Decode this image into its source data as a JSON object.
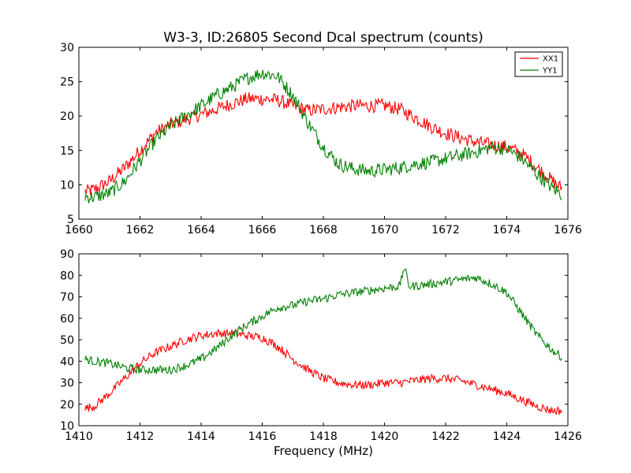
{
  "figure": {
    "title": "W3-3, ID:26805 Second Dcal spectrum (counts)",
    "background": "#ffffff"
  },
  "chart_data": [
    {
      "type": "line",
      "title": "W3-3, ID:26805 Second Dcal spectrum (counts)",
      "xlabel": "",
      "ylabel": "",
      "xlim": [
        1660,
        1676
      ],
      "ylim": [
        5,
        30
      ],
      "xticks": [
        "1660",
        "1662",
        "1664",
        "1666",
        "1668",
        "1670",
        "1672",
        "1674",
        "1676"
      ],
      "yticks": [
        "5",
        "10",
        "15",
        "20",
        "25",
        "30"
      ],
      "grid": false,
      "legend": "top-right",
      "noise": 1.0,
      "series": [
        {
          "name": "XX1",
          "color": "#ff0000",
          "x": [
            1660.2,
            1660.5,
            1661.0,
            1661.5,
            1662.0,
            1662.5,
            1663.0,
            1663.5,
            1664.0,
            1664.5,
            1665.0,
            1665.5,
            1666.0,
            1666.5,
            1667.0,
            1667.5,
            1668.0,
            1668.5,
            1669.0,
            1669.5,
            1670.0,
            1670.5,
            1671.0,
            1671.5,
            1672.0,
            1672.5,
            1673.0,
            1673.5,
            1674.0,
            1674.5,
            1675.0,
            1675.5,
            1675.8
          ],
          "y": [
            9.0,
            9.3,
            10.5,
            12.5,
            15.0,
            17.5,
            18.8,
            19.5,
            20.2,
            21.0,
            21.8,
            22.5,
            22.5,
            22.3,
            21.5,
            20.8,
            21.0,
            21.3,
            21.5,
            21.5,
            21.5,
            21.0,
            19.8,
            18.5,
            17.5,
            16.8,
            16.2,
            15.8,
            15.5,
            14.5,
            12.5,
            10.5,
            9.5
          ]
        },
        {
          "name": "YY1",
          "color": "#008000",
          "x": [
            1660.2,
            1660.5,
            1661.0,
            1661.5,
            1662.0,
            1662.5,
            1663.0,
            1663.5,
            1664.0,
            1664.5,
            1665.0,
            1665.5,
            1666.0,
            1666.5,
            1667.0,
            1667.5,
            1668.0,
            1668.5,
            1669.0,
            1669.5,
            1670.0,
            1670.5,
            1671.0,
            1671.5,
            1672.0,
            1672.5,
            1673.0,
            1673.5,
            1674.0,
            1674.5,
            1675.0,
            1675.5,
            1675.8
          ],
          "y": [
            8.3,
            8.2,
            8.8,
            10.5,
            13.5,
            16.5,
            18.5,
            20.0,
            21.5,
            23.0,
            24.2,
            25.5,
            26.3,
            25.8,
            23.0,
            19.0,
            15.5,
            13.0,
            12.3,
            12.0,
            12.2,
            12.5,
            13.0,
            13.3,
            13.8,
            14.3,
            14.8,
            15.5,
            15.2,
            13.8,
            11.5,
            9.5,
            8.6
          ]
        }
      ]
    },
    {
      "type": "line",
      "title": "",
      "xlabel": "Frequency (MHz)",
      "ylabel": "",
      "xlim": [
        1410,
        1426
      ],
      "ylim": [
        10,
        90
      ],
      "xticks": [
        "1410",
        "1412",
        "1414",
        "1416",
        "1418",
        "1420",
        "1422",
        "1424",
        "1426"
      ],
      "yticks": [
        "10",
        "20",
        "30",
        "40",
        "50",
        "60",
        "70",
        "80",
        "90"
      ],
      "grid": false,
      "noise": 2.0,
      "series": [
        {
          "color": "#ff0000",
          "x": [
            1410.2,
            1410.5,
            1411.0,
            1411.5,
            1412.0,
            1412.5,
            1413.0,
            1413.5,
            1414.0,
            1414.5,
            1415.0,
            1415.5,
            1416.0,
            1416.5,
            1417.0,
            1417.5,
            1418.0,
            1418.5,
            1419.0,
            1419.5,
            1420.0,
            1420.5,
            1421.0,
            1421.5,
            1422.0,
            1422.5,
            1423.0,
            1423.5,
            1424.0,
            1424.5,
            1425.0,
            1425.5,
            1425.8
          ],
          "y": [
            18,
            19,
            25,
            32,
            39,
            44,
            47,
            50,
            52,
            53,
            53,
            52,
            51,
            47,
            41,
            36,
            32,
            30,
            29,
            29,
            30,
            30,
            31,
            32,
            32,
            31,
            29,
            27,
            25,
            22,
            19,
            17,
            17
          ]
        },
        {
          "color": "#008000",
          "x": [
            1410.2,
            1410.5,
            1411.0,
            1411.5,
            1412.0,
            1412.5,
            1413.0,
            1413.5,
            1414.0,
            1414.5,
            1415.0,
            1415.5,
            1416.0,
            1416.5,
            1417.0,
            1417.5,
            1418.0,
            1418.5,
            1419.0,
            1419.5,
            1420.0,
            1420.5,
            1420.65,
            1420.8,
            1421.0,
            1421.5,
            1422.0,
            1422.5,
            1423.0,
            1423.5,
            1424.0,
            1424.5,
            1425.0,
            1425.5,
            1425.8
          ],
          "y": [
            41,
            40,
            39,
            37,
            36,
            36,
            36,
            38,
            41,
            46,
            52,
            57,
            61,
            65,
            66,
            68,
            69,
            71,
            72,
            73,
            74,
            75,
            84,
            75,
            75,
            76,
            77,
            78,
            79,
            76,
            72,
            62,
            52,
            45,
            42
          ]
        }
      ]
    }
  ]
}
